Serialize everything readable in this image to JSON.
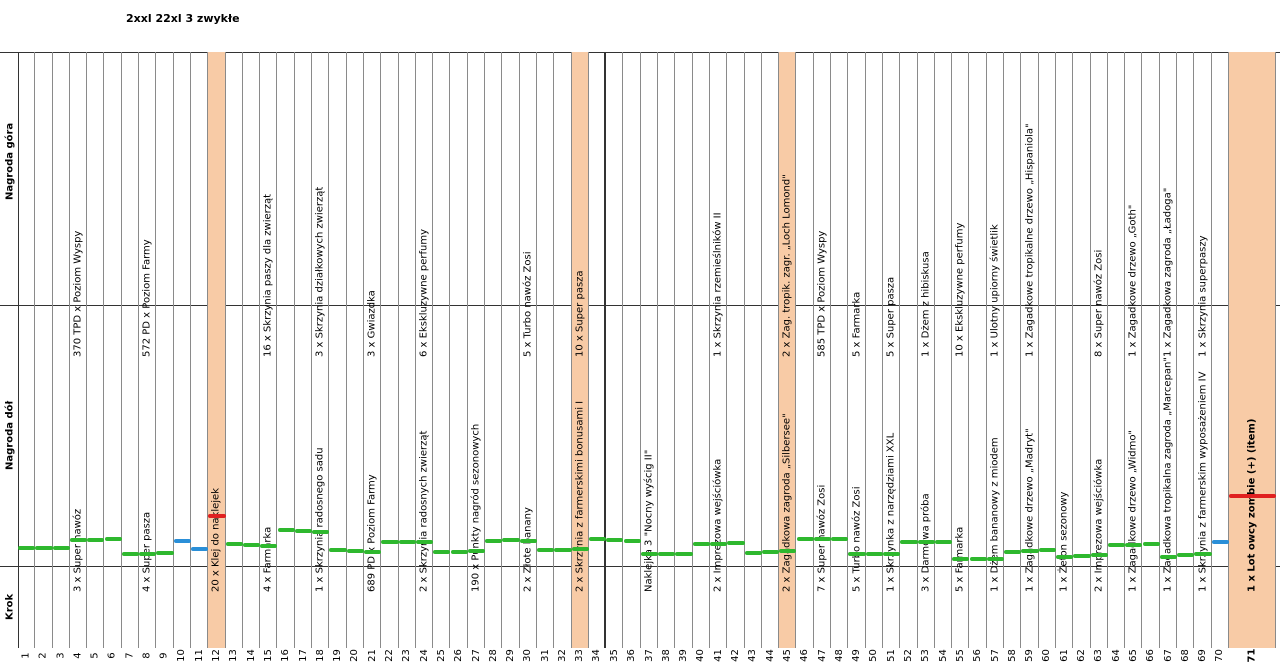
{
  "note": "2xxl  22xl 3 zwykłe",
  "row_labels": {
    "top": "Nagroda góra",
    "bottom": "Nagroda dół",
    "step": "Krok"
  },
  "steps": [
    {
      "n": "1",
      "top": "",
      "bot": ""
    },
    {
      "n": "2",
      "top": "",
      "bot": ""
    },
    {
      "n": "3",
      "top": "",
      "bot": ""
    },
    {
      "n": "4",
      "top": "370 TPD x Poziom Wyspy",
      "bot": "3 x Super nawóz"
    },
    {
      "n": "5",
      "top": "",
      "bot": ""
    },
    {
      "n": "6",
      "top": "",
      "bot": ""
    },
    {
      "n": "7",
      "top": "",
      "bot": ""
    },
    {
      "n": "8",
      "top": "572 PD x Poziom Farmy",
      "bot": "4 x Super pasza"
    },
    {
      "n": "9",
      "top": "",
      "bot": ""
    },
    {
      "n": "10",
      "top": "",
      "bot": ""
    },
    {
      "n": "11",
      "top": "",
      "bot": ""
    },
    {
      "n": "12",
      "top": "",
      "bot": "20 x Klej do naklejek"
    },
    {
      "n": "13",
      "top": "",
      "bot": ""
    },
    {
      "n": "14",
      "top": "",
      "bot": ""
    },
    {
      "n": "15",
      "top": "16 x Skrzynia paszy dla zwierząt",
      "bot": "4 x Farmarka"
    },
    {
      "n": "16",
      "top": "",
      "bot": ""
    },
    {
      "n": "17",
      "top": "",
      "bot": ""
    },
    {
      "n": "18",
      "top": "3 x Skrzynia działkowych zwierząt",
      "bot": "1 x Skrzynia radosnego sadu"
    },
    {
      "n": "19",
      "top": "",
      "bot": ""
    },
    {
      "n": "20",
      "top": "",
      "bot": ""
    },
    {
      "n": "21",
      "top": "3 x Gwiazdka",
      "bot": "689 PD x Poziom Farmy"
    },
    {
      "n": "22",
      "top": "",
      "bot": ""
    },
    {
      "n": "23",
      "top": "",
      "bot": ""
    },
    {
      "n": "24",
      "top": "6 x Ekskluzywne perfumy",
      "bot": "2 x Skrzynia radosnych zwierząt"
    },
    {
      "n": "25",
      "top": "",
      "bot": ""
    },
    {
      "n": "26",
      "top": "",
      "bot": ""
    },
    {
      "n": "27",
      "top": "",
      "bot": "190 x Punkty nagród sezonowych"
    },
    {
      "n": "28",
      "top": "",
      "bot": ""
    },
    {
      "n": "29",
      "top": "",
      "bot": ""
    },
    {
      "n": "30",
      "top": "5 x Turbo nawóz Zosi",
      "bot": "2 x Złote banany"
    },
    {
      "n": "31",
      "top": "",
      "bot": ""
    },
    {
      "n": "32",
      "top": "",
      "bot": ""
    },
    {
      "n": "33",
      "top": "10 x Super pasza",
      "bot": "2 x Skrzynia z farmerskimi bonusami I"
    },
    {
      "n": "34",
      "top": "",
      "bot": ""
    },
    {
      "n": "35",
      "top": "",
      "bot": ""
    },
    {
      "n": "36",
      "top": "",
      "bot": ""
    },
    {
      "n": "37",
      "top": "",
      "bot": "Naklejka 3 \"Nocny wyścig II\""
    },
    {
      "n": "38",
      "top": "",
      "bot": ""
    },
    {
      "n": "39",
      "top": "",
      "bot": ""
    },
    {
      "n": "40",
      "top": "",
      "bot": ""
    },
    {
      "n": "41",
      "top": "1 x Skrzynia rzemieślników II",
      "bot": "2 x Imprezowa wejściówka"
    },
    {
      "n": "42",
      "top": "",
      "bot": ""
    },
    {
      "n": "43",
      "top": "",
      "bot": ""
    },
    {
      "n": "44",
      "top": "",
      "bot": ""
    },
    {
      "n": "45",
      "top": "2 x Zag. tropik. zagr. „Loch Lomond\"",
      "bot": "2 x Zagadkowa zagroda „Silbersee\""
    },
    {
      "n": "46",
      "top": "",
      "bot": ""
    },
    {
      "n": "47",
      "top": "585 TPD x Poziom Wyspy",
      "bot": "7 x Super nawóz Zosi"
    },
    {
      "n": "48",
      "top": "",
      "bot": ""
    },
    {
      "n": "49",
      "top": "5 x Farmarka",
      "bot": "5 x Turbo nawóz Zosi"
    },
    {
      "n": "50",
      "top": "",
      "bot": ""
    },
    {
      "n": "51",
      "top": "5 x Super pasza",
      "bot": "1 x Skrzynka z narzędziami XXL"
    },
    {
      "n": "52",
      "top": "",
      "bot": ""
    },
    {
      "n": "53",
      "top": "1 x Dżem z hibiskusa",
      "bot": "3 x Darmowa próba"
    },
    {
      "n": "54",
      "top": "",
      "bot": ""
    },
    {
      "n": "55",
      "top": "10 x Ekskluzywne perfumy",
      "bot": "5 x Farmarka"
    },
    {
      "n": "56",
      "top": "",
      "bot": ""
    },
    {
      "n": "57",
      "top": "1 x Ulotny upiorny świetlik",
      "bot": "1 x Dżem bananowy z miodem"
    },
    {
      "n": "58",
      "top": "",
      "bot": ""
    },
    {
      "n": "59",
      "top": "1 x Zagadkowe tropikalne drzewo „Hispaniola\"",
      "bot": "1 x Zagadkowe drzewo „Madryt\""
    },
    {
      "n": "60",
      "top": "",
      "bot": ""
    },
    {
      "n": "61",
      "top": "",
      "bot": "1 x Żeton sezonowy"
    },
    {
      "n": "62",
      "top": "",
      "bot": ""
    },
    {
      "n": "63",
      "top": "8 x Super nawóz Zosi",
      "bot": "2 x Imprezowa wejściówka"
    },
    {
      "n": "64",
      "top": "",
      "bot": ""
    },
    {
      "n": "65",
      "top": "1 x Zagadkowe drzewo „Goth\"",
      "bot": "1 x Zagadkowe drzewo „Widmo\""
    },
    {
      "n": "66",
      "top": "",
      "bot": ""
    },
    {
      "n": "67",
      "top": "1 x Zagadkowa zagroda „Ładoga\"",
      "bot": "1 x Zagadkowa tropikalna zagroda „Marcepan\""
    },
    {
      "n": "68",
      "top": "",
      "bot": ""
    },
    {
      "n": "69",
      "top": "1 x Skrzynia superpaszy",
      "bot": "1 x Skrzynia z farmerskim wyposażeniem IV"
    },
    {
      "n": "70",
      "top": "",
      "bot": ""
    },
    {
      "n": "71",
      "top": "",
      "bot": "1 x Lot owcy zombie (+) (item)"
    }
  ],
  "colors": {
    "highlight": "#f8cba6",
    "green": "#2eb82e",
    "blue": "#2a8fd8",
    "red": "#e02020"
  }
}
